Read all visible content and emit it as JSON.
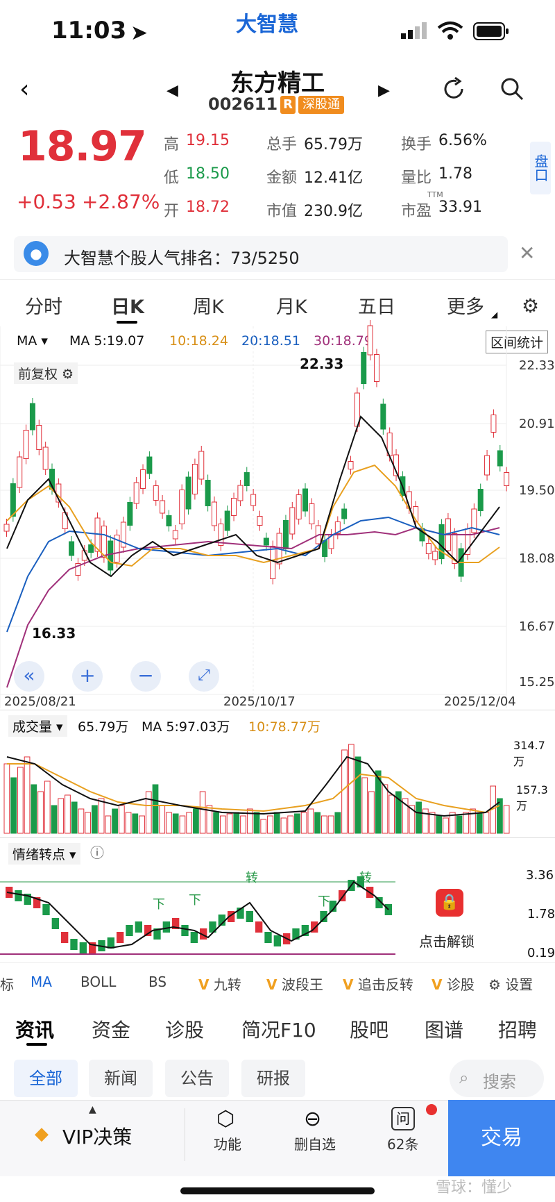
{
  "status": {
    "time": "11:03"
  },
  "app": {
    "logo_text": "大智慧"
  },
  "stock": {
    "name": "东方精工",
    "code": "002611",
    "r_tag": "R",
    "market_tag": "深股通",
    "price": "18.97",
    "change": "+0.53",
    "change_pct": "+2.87%"
  },
  "quote": {
    "high_label": "高",
    "high": "19.15",
    "low_label": "低",
    "low": "18.50",
    "open_label": "开",
    "open": "18.72",
    "vol_label": "总手",
    "vol": "65.79万",
    "amt_label": "金额",
    "amt": "12.41亿",
    "mcap_label": "市值",
    "mcap": "230.9亿",
    "turn_label": "换手",
    "turn": "6.56%",
    "vr_label": "量比",
    "vr": "1.78",
    "pe_label": "市盈",
    "pe_sup": "TTM",
    "pe": "33.91",
    "side_button": "盘口"
  },
  "notice": {
    "text": "大智慧个股人气排名：73/5250"
  },
  "chart_tabs": [
    "分时",
    "日K",
    "周K",
    "月K",
    "五日",
    "更多"
  ],
  "kline": {
    "ma_select": "MA",
    "ma5": "MA 5:19.07",
    "ma10": "10:18.24",
    "ma20": "20:18.51",
    "ma30": "30:18.79",
    "range_stat": "区间统计",
    "adjust": "前复权",
    "max_label": "22.33",
    "min_label": "16.33",
    "y_ticks": [
      "22.33",
      "20.91",
      "19.50",
      "18.08",
      "16.67",
      "15.25"
    ],
    "dates": [
      "2025/08/21",
      "2025/10/17",
      "2025/12/04"
    ],
    "colors": {
      "up": "#e0303a",
      "down": "#1a9a4a",
      "ma5": "#111111",
      "ma10": "#e8a020",
      "ma20": "#1a5fbf",
      "ma30": "#a0307a"
    }
  },
  "volume": {
    "select": "成交量",
    "value": "65.79万",
    "ma5": "MA 5:97.03万",
    "ma10": "10:78.77万",
    "y_ticks": [
      "314.7万",
      "157.3万"
    ]
  },
  "sentiment": {
    "select": "情绪转点",
    "marker_zhuan": "转",
    "marker_xia": "下",
    "y_ticks": [
      "3.36",
      "1.78",
      "0.19"
    ],
    "unlock": "点击解锁"
  },
  "indicators": [
    "标",
    "MA",
    "BOLL",
    "BS",
    "九转",
    "波段王",
    "追击反转",
    "诊股"
  ],
  "indicator_settings": "设置",
  "news_tabs": [
    "资讯",
    "资金",
    "诊股",
    "简况F10",
    "股吧",
    "图谱",
    "招聘"
  ],
  "chips": [
    "全部",
    "新闻",
    "公告",
    "研报"
  ],
  "search": {
    "placeholder": "搜索"
  },
  "bottom": {
    "vip": "VIP决策",
    "func": "功能",
    "del": "删自选",
    "ask_count": "62条",
    "trade": "交易"
  },
  "watermark": "雪球：懂少",
  "chart_data": {
    "type": "candlestick",
    "x_start": "2025/08/21",
    "x_mid": "2025/10/17",
    "x_end": "2025/12/04",
    "ylim": [
      15.25,
      22.33
    ],
    "high_marker": 22.33,
    "low_marker": 16.33,
    "last_close": 18.97
  }
}
